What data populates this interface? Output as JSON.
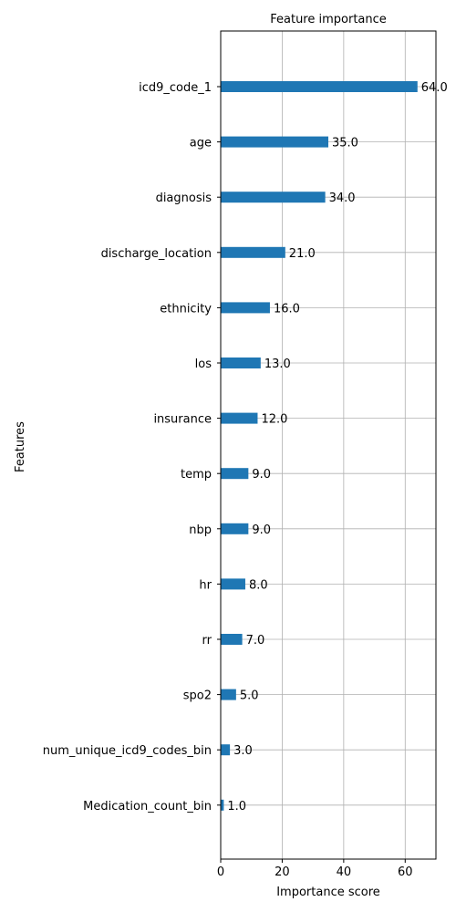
{
  "chart_data": {
    "type": "bar",
    "orientation": "horizontal",
    "title": "Feature importance",
    "xlabel": "Importance score",
    "ylabel": "Features",
    "xlim": [
      0,
      70
    ],
    "xticks": [
      0,
      20,
      40,
      60
    ],
    "grid": true,
    "bar_color": "#1f77b4",
    "categories": [
      "icd9_code_1",
      "age",
      "diagnosis",
      "discharge_location",
      "ethnicity",
      "los",
      "insurance",
      "temp",
      "nbp",
      "hr",
      "rr",
      "spo2",
      "num_unique_icd9_codes_bin",
      "Medication_count_bin"
    ],
    "values": [
      64,
      35,
      34,
      21,
      16,
      13,
      12,
      9,
      9,
      8,
      7,
      5,
      3,
      1
    ],
    "value_labels": [
      "64.0",
      "35.0",
      "34.0",
      "21.0",
      "16.0",
      "13.0",
      "12.0",
      "9.0",
      "9.0",
      "8.0",
      "7.0",
      "5.0",
      "3.0",
      "1.0"
    ]
  }
}
